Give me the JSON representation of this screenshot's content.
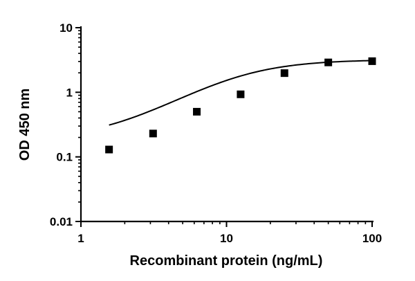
{
  "chart_data": {
    "type": "scatter",
    "title": "",
    "xlabel": "Recombinant protein (ng/mL)",
    "ylabel": "OD 450 nm",
    "x_scale": "log",
    "y_scale": "log",
    "xlim": [
      1,
      100
    ],
    "ylim": [
      0.01,
      10
    ],
    "x_ticks": [
      {
        "value": 1,
        "label": "1"
      },
      {
        "value": 10,
        "label": "10"
      },
      {
        "value": 100,
        "label": "100"
      }
    ],
    "y_ticks": [
      {
        "value": 0.01,
        "label": "0.01"
      },
      {
        "value": 0.1,
        "label": "0.1"
      },
      {
        "value": 1,
        "label": "1"
      },
      {
        "value": 10,
        "label": "10"
      }
    ],
    "grid": false,
    "legend": "none",
    "series": [
      {
        "x": [
          1.56,
          3.13,
          6.25,
          12.5,
          25,
          50,
          100
        ],
        "y": [
          0.13,
          0.23,
          0.5,
          0.93,
          1.98,
          2.9,
          3.03
        ]
      }
    ],
    "fit": {
      "type": "4PL",
      "bottom": 0.18,
      "top": 3.2,
      "ec50": 11.5,
      "hill": 1.55,
      "x_range": [
        1.56,
        100
      ]
    },
    "colors": {
      "markers": "#000000",
      "curve": "#000000",
      "axes": "#000000"
    }
  }
}
